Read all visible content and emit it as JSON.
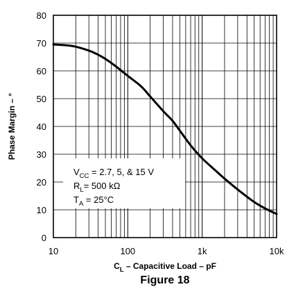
{
  "chart_data": {
    "type": "line",
    "x_scale": "log",
    "xlim": [
      10,
      10000
    ],
    "ylim": [
      0,
      80
    ],
    "grid": true,
    "x_ticks": [
      {
        "value": 10,
        "label": "10"
      },
      {
        "value": 100,
        "label": "100"
      },
      {
        "value": 1000,
        "label": "1k"
      },
      {
        "value": 10000,
        "label": "10k"
      }
    ],
    "y_ticks": [
      0,
      10,
      20,
      30,
      40,
      50,
      60,
      70,
      80
    ],
    "y_tick_labels": [
      "0",
      "10",
      "20",
      "30",
      "40",
      "50",
      "60",
      "70",
      "80"
    ],
    "xlabel": {
      "main": "C",
      "sub": "L",
      "rest": " – Capacitive Load – pF"
    },
    "ylabel": "Phase Margin – °",
    "figure_caption": "Figure 18",
    "annotation": {
      "line1": {
        "main": "V",
        "sub": "CC",
        "rest": " = 2.7, 5, & 15 V"
      },
      "line2": {
        "main": "R",
        "sub": "L",
        "rest": "= 500 kΩ"
      },
      "line3": {
        "main": "T",
        "sub": "A",
        "rest": " = 25°C"
      }
    },
    "series": [
      {
        "x": [
          10,
          15,
          20,
          30,
          40,
          50,
          70,
          100,
          150,
          200,
          300,
          400,
          500,
          700,
          1000,
          1500,
          2000,
          3000,
          5000,
          7000,
          10000
        ],
        "y": [
          69.5,
          69.2,
          68.7,
          67.3,
          65.8,
          64.3,
          61.5,
          58.2,
          54.5,
          50.8,
          45.5,
          42,
          38.5,
          33.2,
          28.5,
          24.2,
          21.2,
          17.3,
          12.8,
          10.5,
          8.5
        ]
      }
    ]
  }
}
